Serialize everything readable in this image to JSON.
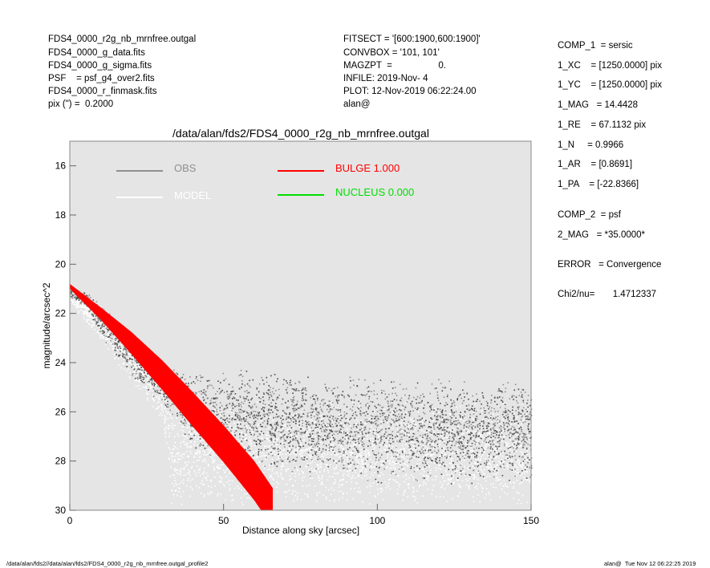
{
  "header": {
    "left": [
      "FDS4_0000_r2g_nb_mrnfree.outgal",
      "FDS4_0000_g_data.fits",
      "FDS4_0000_g_sigma.fits",
      "PSF    = psf_g4_over2.fits",
      "FDS4_0000_r_finmask.fits",
      "pix (\") =  0.2000"
    ],
    "middle": [
      "FITSECT = '[600:1900,600:1900]'",
      "CONVBOX = '101, 101'",
      "MAGZPT  =                  0.",
      "INFILE: 2019-Nov- 4",
      "PLOT: 12-Nov-2019 06:22:24.00",
      "alan@"
    ]
  },
  "params": [
    "COMP_1  = sersic",
    "1_XC    = [1250.0000] pix",
    "1_YC    = [1250.0000] pix",
    "1_MAG   = 14.4428",
    "1_RE    = 67.1132 pix",
    "1_N     = 0.9966",
    "1_AR    = [0.8691]",
    "1_PA    = [-22.8366]",
    "COMP_2  = psf",
    "2_MAG   = *35.0000*",
    "ERROR   = Convergence",
    "Chi2/nu=       1.4712337"
  ],
  "footer": {
    "left": "/data/alan/fds2//data/alan/fds2/FDS4_0000_r2g_nb_mrnfree.outgal_profile2",
    "right": "alan@  Tue Nov 12 06:22:25 2019"
  },
  "colors": {
    "plot_bg": "#e5e5e5",
    "obs": "#8f8f8f",
    "obs_dark": "#4a4a4a",
    "model": "#ffffff",
    "bulge": "#ff0000",
    "nucleus": "#00dd00"
  },
  "chart_data": {
    "type": "scatter",
    "title": "/data/alan/fds2/FDS4_0000_r2g_nb_mrnfree.outgal",
    "xlabel": "Distance along sky [arcsec]",
    "ylabel": "magnitude/arcsec^2",
    "xlim": [
      0,
      150
    ],
    "ylim": [
      30,
      15
    ],
    "y_inverted": true,
    "xticks": [
      0,
      50,
      100,
      150
    ],
    "yticks": [
      16,
      18,
      20,
      22,
      24,
      26,
      28,
      30
    ],
    "grid": false,
    "legend": [
      {
        "label": "OBS",
        "color": "#8f8f8f"
      },
      {
        "label": "MODEL",
        "color": "#ffffff"
      },
      {
        "label": "BULGE  1.000",
        "color": "#ff0000"
      },
      {
        "label": "NUCLEUS  0.000",
        "color": "#00dd00"
      }
    ],
    "series": [
      {
        "name": "BULGE",
        "style": "band",
        "x": [
          0,
          10,
          20,
          30,
          40,
          50,
          60,
          66
        ],
        "y_center": [
          20.9,
          22.0,
          23.2,
          24.5,
          25.9,
          27.3,
          28.8,
          29.9
        ],
        "band_width": [
          0.1,
          0.25,
          0.45,
          0.6,
          0.7,
          0.75,
          0.8,
          0.8
        ]
      },
      {
        "name": "OBS",
        "style": "points",
        "x": [
          0,
          5,
          10,
          20,
          30,
          35,
          40,
          50,
          100,
          150
        ],
        "y_center": [
          21.2,
          21.4,
          22.3,
          23.7,
          24.8,
          25.4,
          25.9,
          26.2,
          26.8,
          26.8
        ],
        "y_spread": [
          0.2,
          0.3,
          0.7,
          0.9,
          0.9,
          1.2,
          1.6,
          2.0,
          2.2,
          2.2
        ]
      },
      {
        "name": "MODEL",
        "style": "points",
        "x": [
          0,
          10,
          20,
          30,
          33,
          40,
          50,
          100,
          150
        ],
        "y_center": [
          21.3,
          22.5,
          23.9,
          25.2,
          28.0,
          27.5,
          27.6,
          27.7,
          27.7
        ],
        "y_spread": [
          0.3,
          0.6,
          1.0,
          1.2,
          2.5,
          2.0,
          2.2,
          2.2,
          2.2
        ]
      }
    ]
  }
}
